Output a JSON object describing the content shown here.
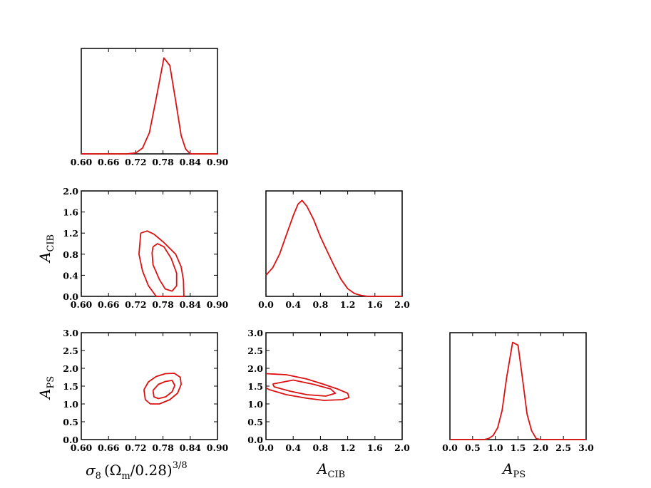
{
  "chart_data": [
    {
      "type": "line",
      "panel": "sigma8-marginal",
      "xticks": [
        "0.60",
        "0.66",
        "0.72",
        "0.78",
        "0.84",
        "0.90"
      ],
      "xlim": [
        0.6,
        0.9
      ],
      "ylim": [
        0,
        1
      ],
      "x": [
        0.6,
        0.7,
        0.72,
        0.735,
        0.75,
        0.765,
        0.782,
        0.795,
        0.808,
        0.82,
        0.83,
        0.84,
        0.9
      ],
      "y": [
        0,
        0,
        0.01,
        0.06,
        0.22,
        0.58,
        1.0,
        0.92,
        0.55,
        0.19,
        0.05,
        0,
        0
      ]
    },
    {
      "type": "line",
      "panel": "sigma8-vs-ACIB",
      "xticks": [
        "0.60",
        "0.66",
        "0.72",
        "0.78",
        "0.84",
        "0.90"
      ],
      "yticks": [
        "0.0",
        "0.4",
        "0.8",
        "1.2",
        "1.6",
        "2.0"
      ],
      "xlim": [
        0.6,
        0.9
      ],
      "ylim": [
        0.0,
        2.0
      ],
      "contours": [
        [
          [
            0.731,
            1.2
          ],
          [
            0.745,
            1.24
          ],
          [
            0.76,
            1.18
          ],
          [
            0.782,
            1.02
          ],
          [
            0.808,
            0.8
          ],
          [
            0.82,
            0.56
          ],
          [
            0.825,
            0.3
          ],
          [
            0.826,
            0.0
          ],
          [
            0.765,
            0.0
          ],
          [
            0.748,
            0.2
          ],
          [
            0.735,
            0.48
          ],
          [
            0.727,
            0.8
          ],
          [
            0.731,
            1.2
          ]
        ],
        [
          [
            0.758,
            0.94
          ],
          [
            0.768,
            1.0
          ],
          [
            0.782,
            0.94
          ],
          [
            0.798,
            0.72
          ],
          [
            0.81,
            0.44
          ],
          [
            0.81,
            0.2
          ],
          [
            0.8,
            0.1
          ],
          [
            0.785,
            0.14
          ],
          [
            0.772,
            0.32
          ],
          [
            0.758,
            0.6
          ],
          [
            0.756,
            0.82
          ],
          [
            0.758,
            0.94
          ]
        ]
      ]
    },
    {
      "type": "line",
      "panel": "ACIB-marginal",
      "xticks": [
        "0.0",
        "0.4",
        "0.8",
        "1.2",
        "1.6",
        "2.0"
      ],
      "xlim": [
        0.0,
        2.0
      ],
      "ylim": [
        0,
        1
      ],
      "x": [
        0.0,
        0.1,
        0.2,
        0.3,
        0.4,
        0.47,
        0.53,
        0.6,
        0.7,
        0.8,
        0.9,
        1.0,
        1.1,
        1.2,
        1.3,
        1.4,
        1.5,
        1.6,
        1.7,
        2.0
      ],
      "y": [
        0.22,
        0.3,
        0.44,
        0.64,
        0.84,
        0.96,
        1.0,
        0.94,
        0.8,
        0.62,
        0.47,
        0.32,
        0.18,
        0.08,
        0.03,
        0.01,
        0.0,
        0.0,
        0.0,
        0.0
      ]
    },
    {
      "type": "line",
      "panel": "sigma8-vs-APS",
      "xticks": [
        "0.60",
        "0.66",
        "0.72",
        "0.78",
        "0.84",
        "0.90"
      ],
      "yticks": [
        "0.0",
        "0.5",
        "1.0",
        "1.5",
        "2.0",
        "2.5",
        "3.0"
      ],
      "xlim": [
        0.6,
        0.9
      ],
      "ylim": [
        0.0,
        3.0
      ],
      "contours": [
        [
          [
            0.738,
            1.4
          ],
          [
            0.748,
            1.62
          ],
          [
            0.765,
            1.77
          ],
          [
            0.785,
            1.85
          ],
          [
            0.805,
            1.86
          ],
          [
            0.818,
            1.75
          ],
          [
            0.82,
            1.55
          ],
          [
            0.812,
            1.3
          ],
          [
            0.795,
            1.12
          ],
          [
            0.772,
            1.0
          ],
          [
            0.752,
            1.0
          ],
          [
            0.741,
            1.12
          ],
          [
            0.738,
            1.4
          ]
        ],
        [
          [
            0.758,
            1.38
          ],
          [
            0.77,
            1.55
          ],
          [
            0.785,
            1.63
          ],
          [
            0.8,
            1.66
          ],
          [
            0.806,
            1.52
          ],
          [
            0.8,
            1.34
          ],
          [
            0.786,
            1.2
          ],
          [
            0.77,
            1.15
          ],
          [
            0.76,
            1.2
          ],
          [
            0.758,
            1.38
          ]
        ]
      ]
    },
    {
      "type": "line",
      "panel": "ACIB-vs-APS",
      "xticks": [
        "0.0",
        "0.4",
        "0.8",
        "1.2",
        "1.6",
        "2.0"
      ],
      "yticks": [
        "0.0",
        "0.5",
        "1.0",
        "1.5",
        "2.0",
        "2.5",
        "3.0"
      ],
      "xlim": [
        0.0,
        2.0
      ],
      "ylim": [
        0.0,
        3.0
      ],
      "contours": [
        [
          [
            0.0,
            1.85
          ],
          [
            0.3,
            1.82
          ],
          [
            0.6,
            1.7
          ],
          [
            0.85,
            1.55
          ],
          [
            1.05,
            1.42
          ],
          [
            1.2,
            1.3
          ],
          [
            1.22,
            1.18
          ],
          [
            1.12,
            1.12
          ],
          [
            0.85,
            1.1
          ],
          [
            0.6,
            1.16
          ],
          [
            0.3,
            1.26
          ],
          [
            0.05,
            1.4
          ],
          [
            0.0,
            1.45
          ]
        ],
        [
          [
            0.1,
            1.56
          ],
          [
            0.4,
            1.67
          ],
          [
            0.7,
            1.55
          ],
          [
            0.95,
            1.42
          ],
          [
            1.02,
            1.3
          ],
          [
            0.88,
            1.22
          ],
          [
            0.6,
            1.26
          ],
          [
            0.35,
            1.36
          ],
          [
            0.12,
            1.48
          ],
          [
            0.1,
            1.56
          ]
        ]
      ]
    },
    {
      "type": "line",
      "panel": "APS-marginal",
      "xticks": [
        "0.0",
        "0.5",
        "1.0",
        "1.5",
        "2.0",
        "2.5",
        "3.0"
      ],
      "xlim": [
        0.0,
        3.0
      ],
      "ylim": [
        0,
        1
      ],
      "x": [
        0.0,
        0.75,
        0.85,
        0.95,
        1.05,
        1.15,
        1.25,
        1.38,
        1.5,
        1.6,
        1.7,
        1.8,
        1.9,
        2.0,
        3.0
      ],
      "y": [
        0,
        0,
        0.01,
        0.04,
        0.12,
        0.3,
        0.64,
        1.0,
        0.97,
        0.62,
        0.26,
        0.09,
        0.01,
        0,
        0
      ]
    }
  ],
  "labels": {
    "sigma8_base": "σ",
    "sigma8_sub": "8",
    "sigma8_rest": "(Ω",
    "sigma8_msub": "m",
    "sigma8_tail": "/0.28)",
    "sigma8_pow": "3/8",
    "acib_base": "A",
    "acib_sub": "CIB",
    "aps_base": "A",
    "aps_sub": "PS"
  },
  "colors": {
    "curve": "#dd1111",
    "axes": "#000000"
  }
}
